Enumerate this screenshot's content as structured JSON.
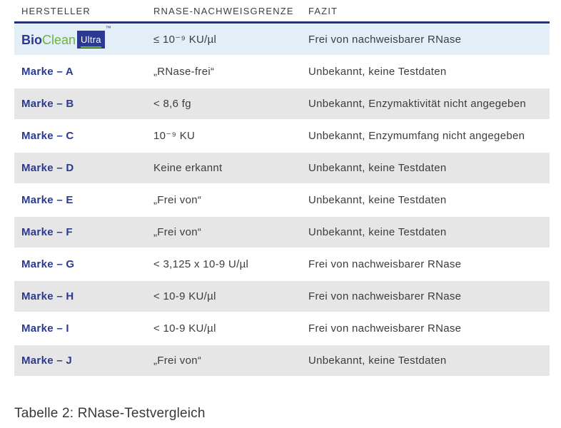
{
  "colors": {
    "accent_navy": "#2b3990",
    "header_rule": "#232f7e",
    "logo_green": "#6cb33f",
    "row_highlight_blue": "#e4eef6",
    "row_gray": "#e6e6e6",
    "text_dark": "#3c3c3c"
  },
  "table": {
    "columns": [
      "HERSTELLER",
      "RNASE-NACHWEISGRENZE",
      "FAZIT"
    ],
    "rows": [
      {
        "key": "bioclean-ultra",
        "logo": {
          "bio": "Bio",
          "clean": "Clean",
          "ultra": "Ultra",
          "tm": "™"
        },
        "grenze": "≤ 10⁻⁹ KU/µl",
        "fazit": "Frei von nachweisbarer RNase"
      },
      {
        "key": "marke-a",
        "hersteller": "Marke – A",
        "grenze": "„RNase-frei“",
        "fazit": "Unbekannt, keine Testdaten"
      },
      {
        "key": "marke-b",
        "hersteller": "Marke – B",
        "grenze": "< 8,6 fg",
        "fazit": "Unbekannt, Enzymaktivität nicht angegeben"
      },
      {
        "key": "marke-c",
        "hersteller": "Marke – C",
        "grenze": "10⁻⁹ KU",
        "fazit": "Unbekannt, Enzymumfang nicht angegeben"
      },
      {
        "key": "marke-d",
        "hersteller": "Marke – D",
        "grenze": "Keine erkannt",
        "fazit": "Unbekannt, keine Testdaten"
      },
      {
        "key": "marke-e",
        "hersteller": "Marke – E",
        "grenze": "„Frei von“",
        "fazit": "Unbekannt, keine Testdaten"
      },
      {
        "key": "marke-f",
        "hersteller": "Marke – F",
        "grenze": "„Frei von“",
        "fazit": "Unbekannt, keine Testdaten"
      },
      {
        "key": "marke-g",
        "hersteller": "Marke – G",
        "grenze": "< 3,125 x 10-9 U/µl",
        "fazit": "Frei von nachweisbarer RNase"
      },
      {
        "key": "marke-h",
        "hersteller": "Marke – H",
        "grenze": "< 10-9 KU/µl",
        "fazit": "Frei von nachweisbarer RNase"
      },
      {
        "key": "marke-i",
        "hersteller": "Marke – I",
        "grenze": "< 10-9 KU/µl",
        "fazit": "Frei von nachweisbarer RNase"
      },
      {
        "key": "marke-j",
        "hersteller": "Marke – J",
        "grenze": "„Frei von“",
        "fazit": "Unbekannt, keine Testdaten"
      }
    ]
  },
  "caption": "Tabelle 2: RNase-Testvergleich"
}
